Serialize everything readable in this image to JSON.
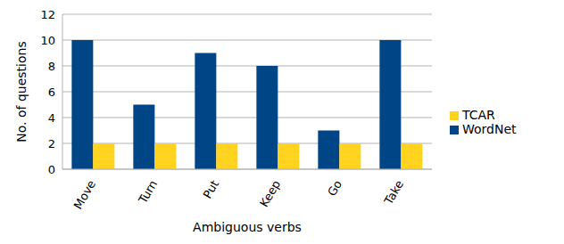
{
  "chart_data": {
    "type": "bar",
    "x_label": "Ambiguous verbs",
    "y_label": "No. of questions",
    "categories": [
      "Move",
      "Turn",
      "Put",
      "Keep",
      "Go",
      "Take"
    ],
    "series": [
      {
        "name": "WordNet",
        "color": "#004586",
        "values": [
          10,
          5,
          9,
          8,
          3,
          10
        ]
      },
      {
        "name": "TCAR",
        "color": "#ffd320",
        "values": [
          2,
          2,
          2,
          2,
          2,
          2
        ]
      }
    ],
    "ylim": [
      0,
      12
    ],
    "yticks": [
      0,
      2,
      4,
      6,
      8,
      10,
      12
    ],
    "grid": true,
    "legend": "right"
  }
}
